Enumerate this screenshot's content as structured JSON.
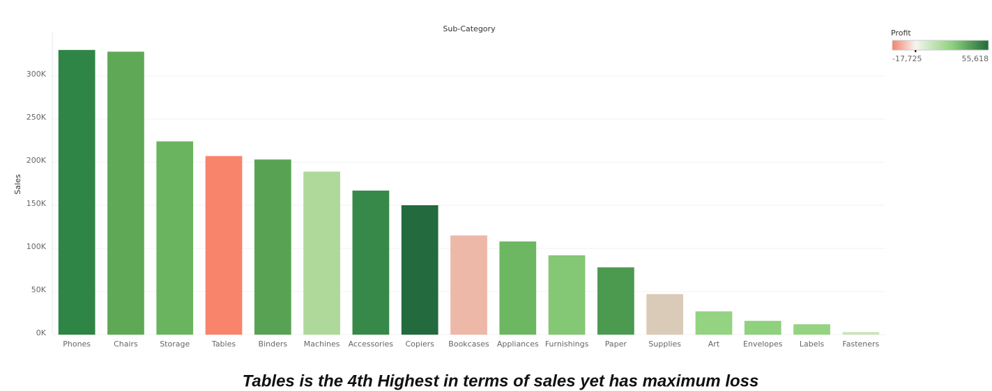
{
  "chart_data": {
    "type": "bar",
    "title": "Sub-Category",
    "y_label": "Sales",
    "caption": "Tables is the 4th Highest in terms of sales yet has maximum loss",
    "categories": [
      "Phones",
      "Chairs",
      "Storage",
      "Tables",
      "Binders",
      "Machines",
      "Accessories",
      "Copiers",
      "Bookcases",
      "Appliances",
      "Furnishings",
      "Paper",
      "Supplies",
      "Art",
      "Envelopes",
      "Labels",
      "Fasteners"
    ],
    "values": [
      330000,
      328000,
      224000,
      207000,
      203000,
      189000,
      167000,
      150000,
      115000,
      108000,
      92000,
      78000,
      47000,
      27000,
      16000,
      12000,
      3000
    ],
    "colors": [
      "#2f8545",
      "#5fa956",
      "#6bb45f",
      "#f8846c",
      "#58a353",
      "#aed99b",
      "#378949",
      "#236a3e",
      "#edb8a8",
      "#6db762",
      "#84c774",
      "#4c9950",
      "#dacbb8",
      "#93d382",
      "#8fd17d",
      "#94d382",
      "#cde3bb"
    ],
    "ylim": [
      0,
      350000
    ],
    "yticks": [
      {
        "value": 0,
        "label": "0K"
      },
      {
        "value": 50000,
        "label": "50K"
      },
      {
        "value": 100000,
        "label": "100K"
      },
      {
        "value": 150000,
        "label": "150K"
      },
      {
        "value": 200000,
        "label": "200K"
      },
      {
        "value": 250000,
        "label": "250K"
      },
      {
        "value": 300000,
        "label": "300K"
      }
    ],
    "grid": true,
    "legend": {
      "title": "Profit",
      "range": [
        {
          "value": -17725,
          "label": "-17,725"
        },
        {
          "value": 55618,
          "label": "55,618"
        }
      ],
      "colors": [
        "#f4826b",
        "#f5f5f0",
        "#8fd17d",
        "#1f6a3a"
      ]
    }
  }
}
